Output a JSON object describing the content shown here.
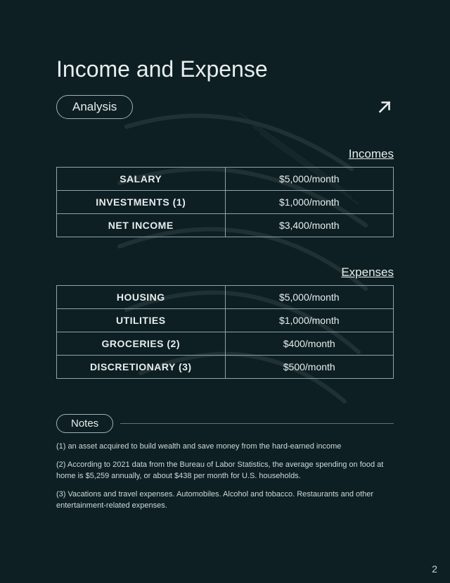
{
  "page": {
    "title": "Income and Expense",
    "pill": "Analysis",
    "number": "2",
    "bg_color": "#0d1f22",
    "text_color": "#e8edee",
    "border_color": "#8fa5a8"
  },
  "incomes": {
    "label": "Incomes",
    "rows": [
      {
        "label": "SALARY",
        "value": "$5,000/month"
      },
      {
        "label": "INVESTMENTS (1)",
        "value": "$1,000/month"
      },
      {
        "label": "NET INCOME",
        "value": "$3,400/month"
      }
    ]
  },
  "expenses": {
    "label": "Expenses",
    "rows": [
      {
        "label": "HOUSING",
        "value": "$5,000/month"
      },
      {
        "label": "UTILITIES",
        "value": "$1,000/month"
      },
      {
        "label": "GROCERIES (2)",
        "value": "$400/month"
      },
      {
        "label": "DISCRETIONARY (3)",
        "value": "$500/month"
      }
    ]
  },
  "notes": {
    "heading": "Notes",
    "items": [
      "(1) an asset acquired to build wealth and save money from the hard-earned income",
      "(2) According to 2021 data from the Bureau of Labor Statistics, the average spending on food at home is $5,259 annually, or about $438 per month for U.S. households.",
      "(3) Vacations and travel expenses. Automobiles. Alcohol and tobacco. Restaurants and other entertainment-related expenses."
    ]
  },
  "table_style": {
    "cell_border_color": "#8fa5a8",
    "label_fontweight": 700,
    "value_fontweight": 400,
    "fontsize": 14
  }
}
